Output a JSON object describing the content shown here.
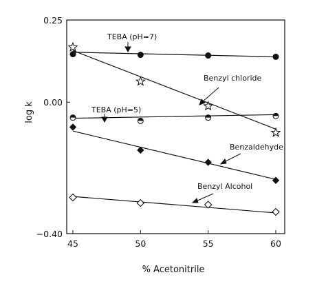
{
  "chart_data": {
    "type": "scatter",
    "title": "",
    "xlabel": "% Acetonitrile",
    "ylabel": "log k",
    "xlim": [
      44,
      61
    ],
    "ylim": [
      -0.4,
      0.25
    ],
    "xticks": [
      45,
      50,
      55,
      60
    ],
    "xtick_labels": [
      "45",
      "50",
      "55",
      "60"
    ],
    "yticks": [
      0.25,
      0.0,
      -0.4
    ],
    "ytick_labels": [
      "0.25",
      "0.00",
      "−0.40"
    ],
    "grid": false,
    "legend": "none",
    "series": [
      {
        "name": "TEBA (pH=7)",
        "marker": "filled-circle",
        "x": [
          45,
          50,
          55,
          60
        ],
        "y": [
          0.146,
          0.144,
          0.142,
          0.138
        ],
        "fit": [
          [
            45,
            0.152
          ],
          [
            60,
            0.138
          ]
        ]
      },
      {
        "name": "Benzyl chloride",
        "marker": "star",
        "x": [
          45,
          50,
          55,
          60
        ],
        "y": [
          0.167,
          0.063,
          -0.012,
          -0.093
        ],
        "fit": [
          [
            45,
            0.157
          ],
          [
            60,
            -0.082
          ]
        ]
      },
      {
        "name": "TEBA (pH=5)",
        "marker": "half-filled-circle",
        "x": [
          45,
          50,
          55,
          60
        ],
        "y": [
          -0.047,
          -0.057,
          -0.047,
          -0.042
        ],
        "fit": [
          [
            45,
            -0.049
          ],
          [
            60,
            -0.038
          ]
        ]
      },
      {
        "name": "Benzaldehyde",
        "marker": "filled-diamond",
        "x": [
          45,
          50,
          55,
          60
        ],
        "y": [
          -0.076,
          -0.146,
          -0.183,
          -0.238
        ],
        "fit": [
          [
            45,
            -0.088
          ],
          [
            60,
            -0.235
          ]
        ]
      },
      {
        "name": "Benzyl Alcohol",
        "marker": "open-diamond",
        "x": [
          45,
          50,
          55,
          60
        ],
        "y": [
          -0.29,
          -0.307,
          -0.312,
          -0.334
        ],
        "fit": [
          [
            45,
            -0.287
          ],
          [
            60,
            -0.337
          ]
        ]
      }
    ],
    "annotations": [
      {
        "text": "TEBA (pH=7)",
        "series": 0
      },
      {
        "text": "Benzyl chloride",
        "series": 1
      },
      {
        "text": "TEBA (pH=5)",
        "series": 2
      },
      {
        "text": "Benzaldehyde",
        "series": 3
      },
      {
        "text": "Benzyl Alcohol",
        "series": 4
      }
    ]
  }
}
